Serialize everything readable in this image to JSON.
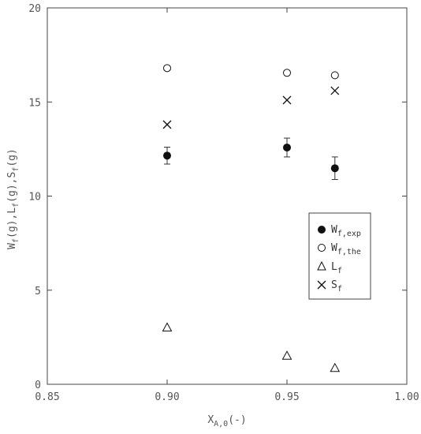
{
  "chart_data": {
    "type": "scatter",
    "xlim": [
      0.85,
      1.0
    ],
    "ylim": [
      0,
      20
    ],
    "x_ticks": [
      "0.85",
      "0.90",
      "0.95",
      "1.00"
    ],
    "y_ticks": [
      "0",
      "5",
      "10",
      "15",
      "20"
    ],
    "xlabel": {
      "main": "X",
      "sub": "A,0",
      "suffix": "(-)"
    },
    "ylabel": "W_f(g),L_f(g),S_f(g)",
    "legend_position": "right",
    "series": [
      {
        "name": "W_f,exp",
        "legend_main": "W",
        "legend_sub": "f,exp",
        "marker": "filled-circle",
        "x": [
          0.9,
          0.95,
          0.97
        ],
        "y": [
          12.15,
          12.58,
          11.48
        ],
        "err": [
          0.45,
          0.5,
          0.6
        ]
      },
      {
        "name": "W_f,the",
        "legend_main": "W",
        "legend_sub": "f,the",
        "marker": "open-circle",
        "x": [
          0.9,
          0.95,
          0.97
        ],
        "y": [
          16.8,
          16.55,
          16.42
        ]
      },
      {
        "name": "L_f",
        "legend_main": "L",
        "legend_sub": "f",
        "marker": "open-triangle",
        "x": [
          0.9,
          0.95,
          0.97
        ],
        "y": [
          3.0,
          1.5,
          0.85
        ]
      },
      {
        "name": "S_f",
        "legend_main": "S",
        "legend_sub": "f",
        "marker": "cross",
        "x": [
          0.9,
          0.95,
          0.97
        ],
        "y": [
          13.8,
          15.1,
          15.6
        ]
      }
    ]
  }
}
